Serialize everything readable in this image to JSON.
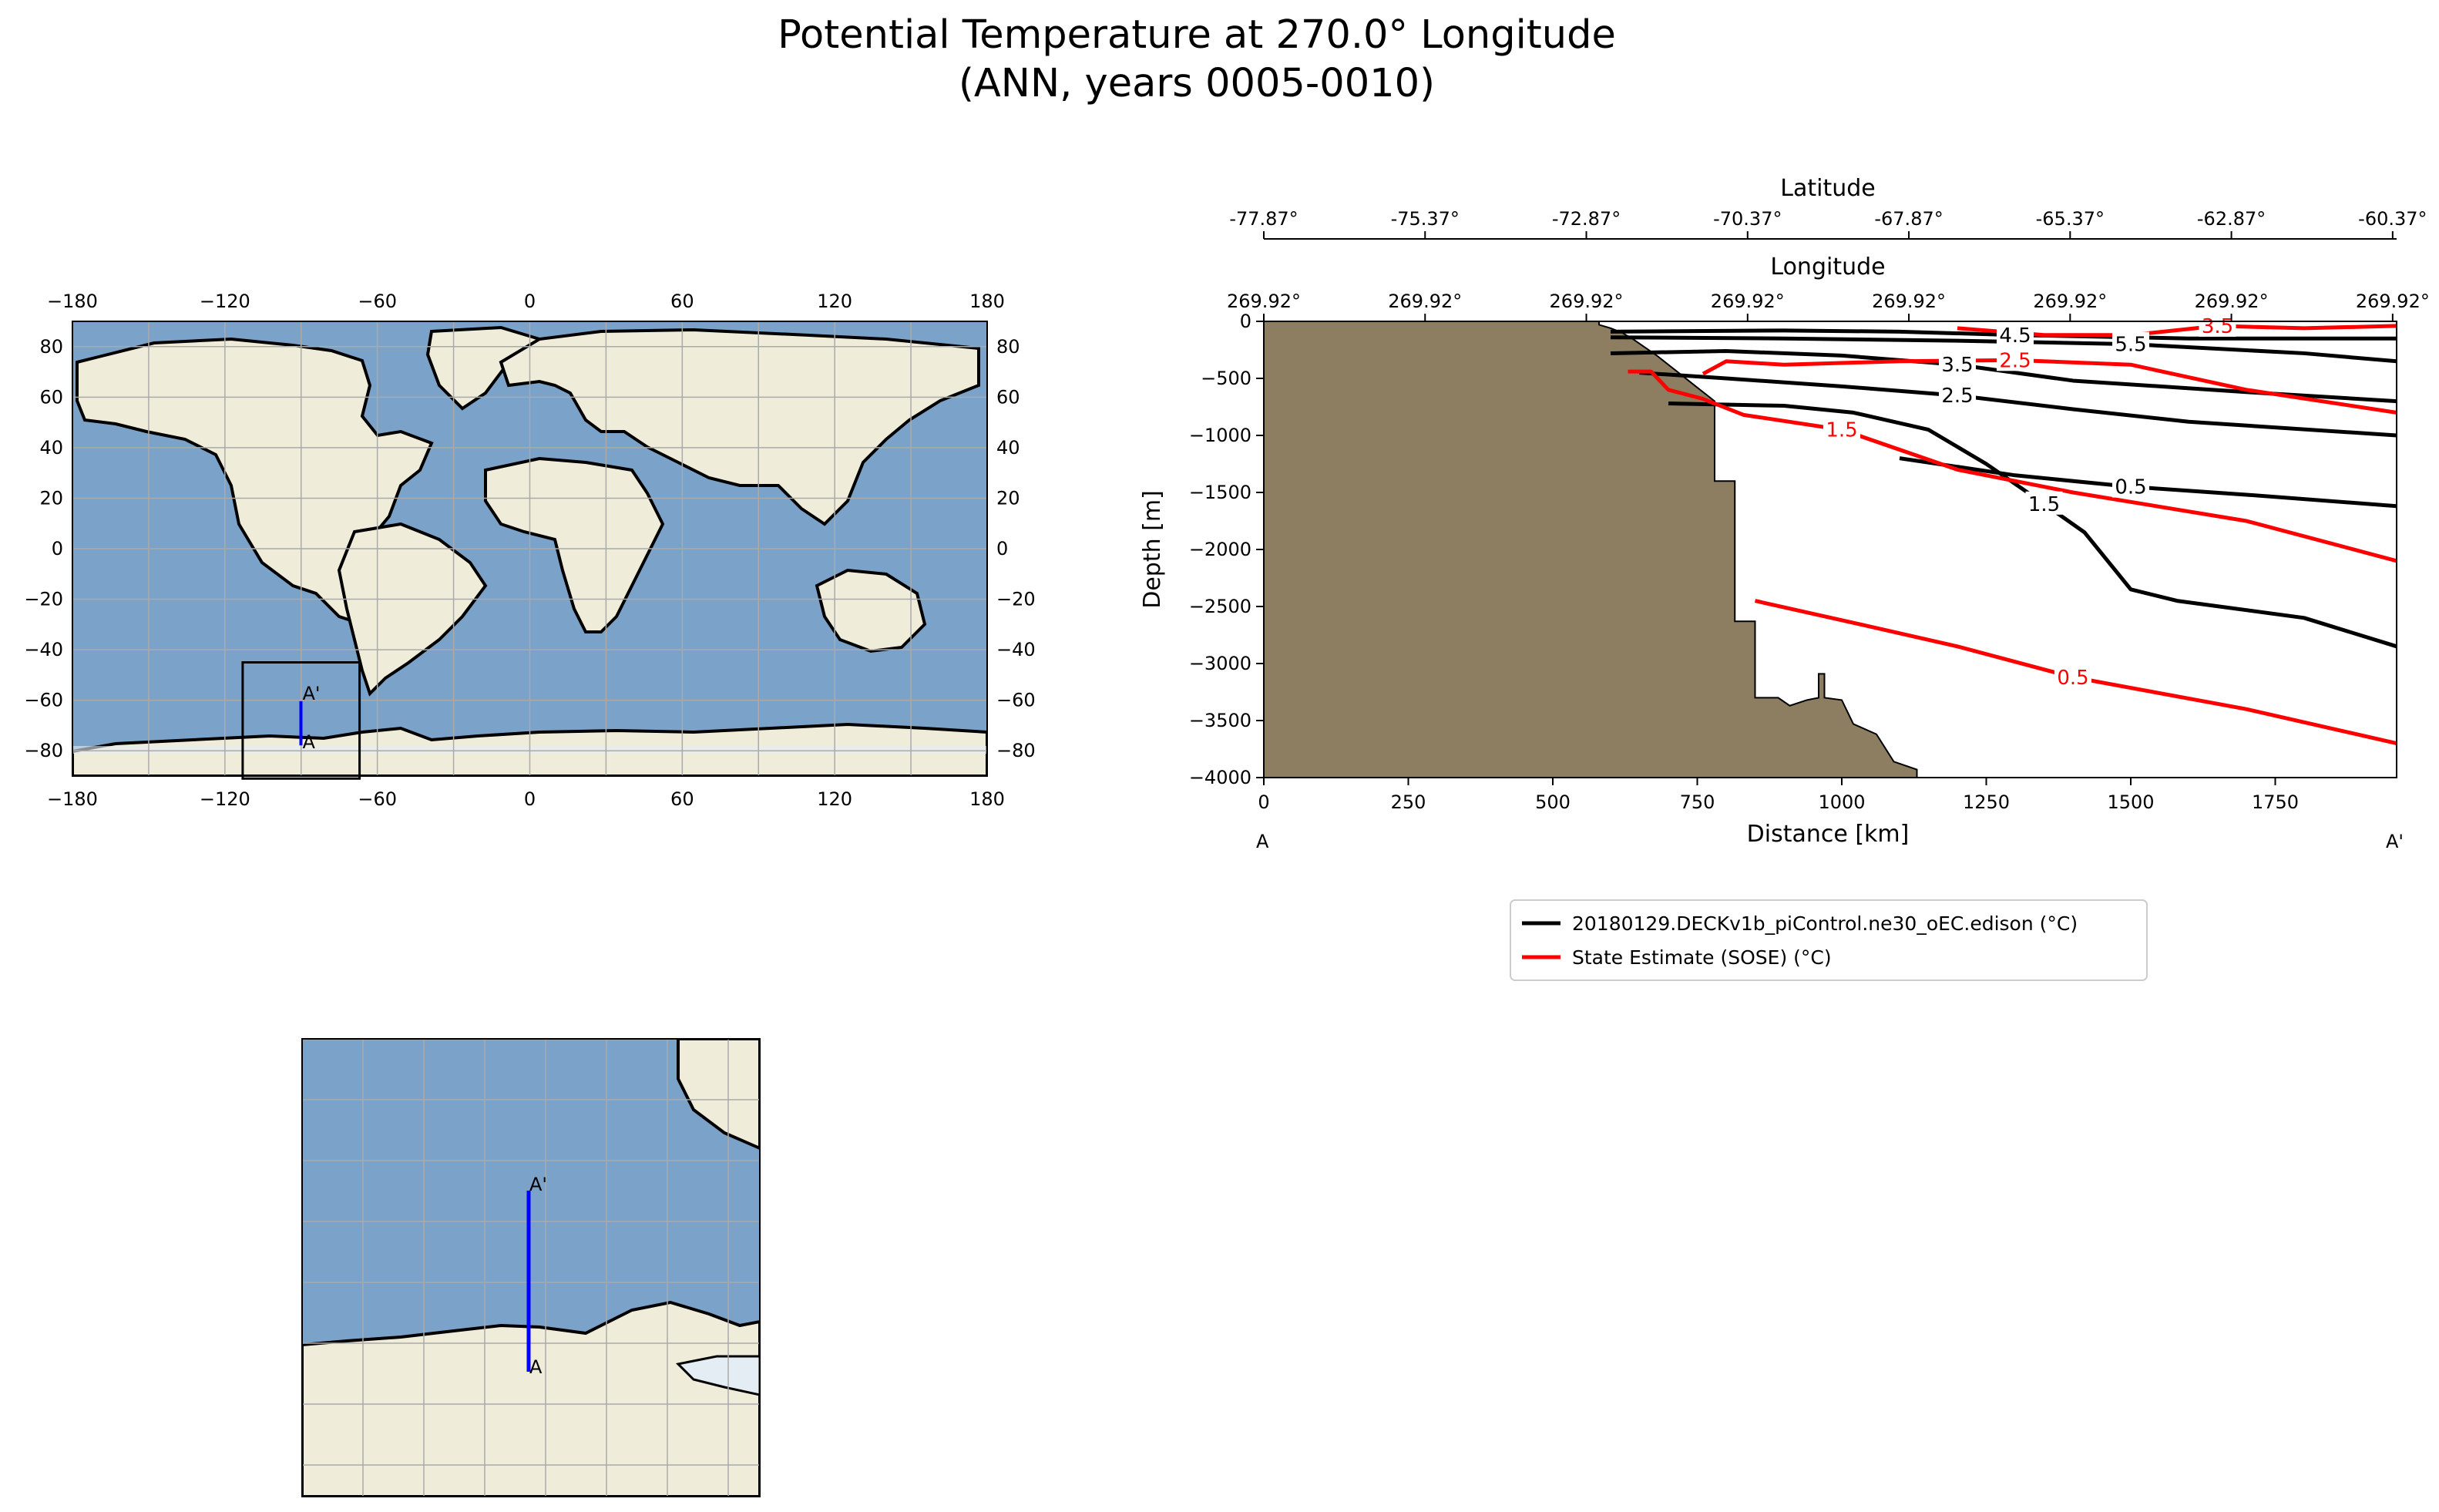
{
  "title_line1": "Potential Temperature at 270.0° Longitude",
  "title_line2": "(ANN, years 0005-0010)",
  "colors": {
    "ocean": "#7ba3c9",
    "land": "#efedda",
    "ice": "#e4ecf4",
    "bathymetry": "#8d7e62",
    "section_line": "#0000ff",
    "model": "#000000",
    "reference": "#ff0000",
    "grid": "#aaaaaa"
  },
  "global_map": {
    "projection": "PlateCarree",
    "xlim": [
      -180,
      180
    ],
    "ylim": [
      -90,
      90
    ],
    "xticks": [
      "−180",
      "−120",
      "−60",
      "0",
      "60",
      "120",
      "180"
    ],
    "yticks": [
      "80",
      "60",
      "40",
      "20",
      "0",
      "−20",
      "−40",
      "−60",
      "−80"
    ],
    "zoom_box": {
      "lon": [
        -113,
        -67
      ],
      "lat": [
        -91,
        -45
      ]
    },
    "section_marker_start": "A",
    "section_marker_end": "A'",
    "section": {
      "lon": -90.08,
      "lat_start": -77.87,
      "lat_end": -60.37
    }
  },
  "inset_map": {
    "marker_start": "A",
    "marker_end": "A'"
  },
  "chart_data": {
    "type": "line",
    "subtype": "contour_section",
    "xlabel": "Distance [km]",
    "ylabel": "Depth [m]",
    "xlim": [
      0,
      1960
    ],
    "ylim": [
      -4000,
      0
    ],
    "xticks": [
      0,
      250,
      500,
      750,
      1000,
      1250,
      1500,
      1750
    ],
    "yticks": [
      0,
      -500,
      -1000,
      -1500,
      -2000,
      -2500,
      -3000,
      -3500,
      -4000
    ],
    "top_axis_latitude": {
      "label": "Latitude",
      "ticks": [
        "-77.87°",
        "-75.37°",
        "-72.87°",
        "-70.37°",
        "-67.87°",
        "-65.37°",
        "-62.87°",
        "-60.37°"
      ]
    },
    "top_axis_longitude": {
      "label": "Longitude",
      "ticks": [
        "269.92°",
        "269.92°",
        "269.92°",
        "269.92°",
        "269.92°",
        "269.92°",
        "269.92°",
        "269.92°"
      ]
    },
    "start_label": "A",
    "end_label": "A'",
    "legend": {
      "position": "below",
      "entries": [
        {
          "label": "20180129.DECKv1b_piControl.ne30_oEC.edison (°C)",
          "color": "#000000"
        },
        {
          "label": "State Estimate (SOSE) (°C)",
          "color": "#ff0000"
        }
      ]
    },
    "bathymetry": [
      [
        580,
        0
      ],
      [
        580,
        -30
      ],
      [
        600,
        -60
      ],
      [
        620,
        -100
      ],
      [
        640,
        -160
      ],
      [
        660,
        -230
      ],
      [
        680,
        -300
      ],
      [
        700,
        -380
      ],
      [
        720,
        -460
      ],
      [
        740,
        -540
      ],
      [
        760,
        -620
      ],
      [
        780,
        -700
      ],
      [
        780,
        -1400
      ],
      [
        815,
        -1400
      ],
      [
        815,
        -2630
      ],
      [
        850,
        -2630
      ],
      [
        850,
        -3300
      ],
      [
        890,
        -3300
      ],
      [
        910,
        -3370
      ],
      [
        940,
        -3320
      ],
      [
        960,
        -3300
      ],
      [
        960,
        -3090
      ],
      [
        970,
        -3090
      ],
      [
        970,
        -3300
      ],
      [
        1000,
        -3320
      ],
      [
        1020,
        -3530
      ],
      [
        1060,
        -3620
      ],
      [
        1090,
        -3860
      ],
      [
        1130,
        -3930
      ],
      [
        1130,
        -4000
      ]
    ],
    "model_contours": [
      {
        "level": "4.5",
        "points": [
          [
            600,
            -90
          ],
          [
            900,
            -80
          ],
          [
            1100,
            -90
          ],
          [
            1300,
            -120
          ],
          [
            1600,
            -150
          ],
          [
            1960,
            -150
          ]
        ]
      },
      {
        "level": "5.5",
        "points": [
          [
            600,
            -140
          ],
          [
            900,
            -150
          ],
          [
            1200,
            -170
          ],
          [
            1500,
            -200
          ],
          [
            1800,
            -280
          ],
          [
            1960,
            -350
          ]
        ]
      },
      {
        "level": "3.5",
        "points": [
          [
            600,
            -280
          ],
          [
            800,
            -260
          ],
          [
            1000,
            -300
          ],
          [
            1200,
            -380
          ],
          [
            1400,
            -520
          ],
          [
            1700,
            -620
          ],
          [
            1960,
            -700
          ]
        ]
      },
      {
        "level": "2.5",
        "points": [
          [
            650,
            -450
          ],
          [
            800,
            -500
          ],
          [
            1000,
            -570
          ],
          [
            1200,
            -650
          ],
          [
            1400,
            -770
          ],
          [
            1600,
            -880
          ],
          [
            1960,
            -1000
          ]
        ]
      },
      {
        "level": "1.5",
        "points": [
          [
            700,
            -720
          ],
          [
            900,
            -740
          ],
          [
            1020,
            -800
          ],
          [
            1150,
            -950
          ],
          [
            1250,
            -1250
          ],
          [
            1350,
            -1600
          ],
          [
            1420,
            -1850
          ],
          [
            1500,
            -2350
          ],
          [
            1580,
            -2450
          ],
          [
            1800,
            -2600
          ],
          [
            1960,
            -2850
          ]
        ]
      },
      {
        "level": "0.5",
        "points": [
          [
            1100,
            -1200
          ],
          [
            1300,
            -1350
          ],
          [
            1500,
            -1450
          ],
          [
            1700,
            -1520
          ],
          [
            1960,
            -1620
          ]
        ]
      }
    ],
    "reference_contours": [
      {
        "level": "1.5",
        "points": [
          [
            630,
            -440
          ],
          [
            670,
            -440
          ],
          [
            700,
            -600
          ],
          [
            760,
            -680
          ],
          [
            830,
            -820
          ],
          [
            1000,
            -950
          ],
          [
            1200,
            -1300
          ],
          [
            1400,
            -1500
          ],
          [
            1700,
            -1750
          ],
          [
            1960,
            -2100
          ]
        ]
      },
      {
        "level": "2.5",
        "points": [
          [
            760,
            -460
          ],
          [
            800,
            -350
          ],
          [
            900,
            -380
          ],
          [
            1100,
            -350
          ],
          [
            1300,
            -340
          ],
          [
            1500,
            -380
          ],
          [
            1700,
            -600
          ],
          [
            1960,
            -800
          ]
        ]
      },
      {
        "level": "0.5",
        "points": [
          [
            850,
            -2450
          ],
          [
            1000,
            -2620
          ],
          [
            1200,
            -2850
          ],
          [
            1400,
            -3120
          ],
          [
            1700,
            -3400
          ],
          [
            1960,
            -3700
          ]
        ]
      },
      {
        "level": "3.5",
        "points": [
          [
            1200,
            -60
          ],
          [
            1350,
            -120
          ],
          [
            1500,
            -120
          ],
          [
            1650,
            -40
          ],
          [
            1800,
            -60
          ],
          [
            1960,
            -40
          ]
        ]
      }
    ]
  }
}
